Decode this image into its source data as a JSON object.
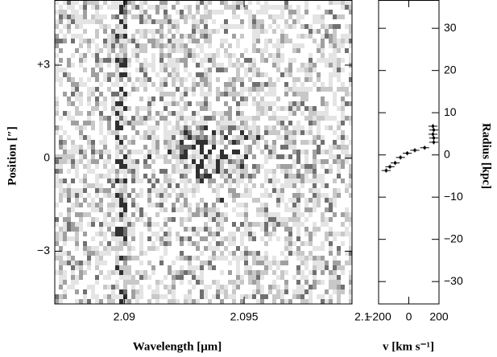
{
  "chart_data": [
    {
      "type": "image",
      "xlabel": "Wavelength [μm]",
      "ylabel": "Position [″]",
      "xlim": [
        2.0871,
        2.0995
      ],
      "ylim": [
        -4.7,
        5.1
      ],
      "xticks": [
        2.09,
        2.095,
        2.1
      ],
      "yticks": [
        {
          "value": 3,
          "label": "+3"
        },
        0,
        {
          "value": -3,
          "label": "−3"
        }
      ]
    },
    {
      "type": "scatter",
      "xlabel": "v [km s⁻¹]",
      "ylabel": "Radius [kpc]",
      "xlim": [
        -200,
        200
      ],
      "ylim": [
        -35.3,
        36.7
      ],
      "xticks": [
        {
          "value": -200,
          "label": "−200"
        },
        0,
        200
      ],
      "yticks": [
        30,
        20,
        10,
        0,
        {
          "value": -10,
          "label": "−10"
        },
        {
          "value": -20,
          "label": "−20"
        },
        {
          "value": -30,
          "label": "−30"
        }
      ],
      "color": "#000000",
      "x": [
        160,
        165,
        160,
        165,
        165,
        105,
        40,
        -10,
        -55,
        -90,
        -125,
        -150
      ],
      "values": [
        6.8,
        5.9,
        4.9,
        4.0,
        3.0,
        1.7,
        1.1,
        0.4,
        -0.6,
        -1.9,
        -2.8,
        -3.7
      ],
      "xerr": [
        30,
        30,
        30,
        30,
        30,
        30,
        30,
        30,
        30,
        30,
        30,
        30
      ],
      "yerr": [
        0.5,
        0.5,
        0.5,
        0.5,
        0.5,
        0.5,
        0.5,
        0.5,
        0.5,
        0.5,
        0.5,
        0.5
      ]
    }
  ]
}
